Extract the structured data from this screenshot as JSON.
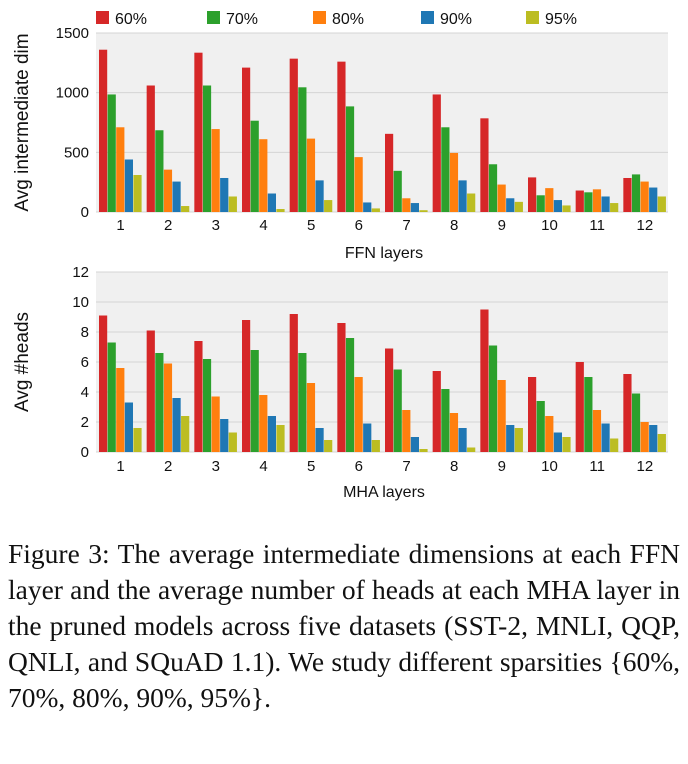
{
  "legend": [
    "60%",
    "70%",
    "80%",
    "90%",
    "95%"
  ],
  "colors": [
    "#d62728",
    "#2ca02c",
    "#ff7f0e",
    "#1f77b4",
    "#bcbd22"
  ],
  "chart_data": [
    {
      "type": "bar",
      "ylabel": "Avg intermediate dim",
      "xlabel": "FFN layers",
      "categories": [
        "1",
        "2",
        "3",
        "4",
        "5",
        "6",
        "7",
        "8",
        "9",
        "10",
        "11",
        "12"
      ],
      "ylim": [
        0,
        1500
      ],
      "yticks": [
        0,
        500,
        1000,
        1500
      ],
      "grid": true,
      "legend_position": "top",
      "series": [
        {
          "name": "60%",
          "values": [
            1360,
            1060,
            1335,
            1210,
            1285,
            1260,
            655,
            985,
            785,
            290,
            180,
            285
          ]
        },
        {
          "name": "70%",
          "values": [
            985,
            685,
            1060,
            765,
            1045,
            885,
            345,
            710,
            400,
            140,
            165,
            315
          ]
        },
        {
          "name": "80%",
          "values": [
            710,
            355,
            695,
            610,
            615,
            460,
            115,
            495,
            230,
            200,
            190,
            255
          ]
        },
        {
          "name": "90%",
          "values": [
            440,
            255,
            285,
            155,
            265,
            80,
            75,
            265,
            115,
            100,
            130,
            205
          ]
        },
        {
          "name": "95%",
          "values": [
            310,
            50,
            130,
            25,
            100,
            30,
            15,
            155,
            85,
            55,
            75,
            130
          ]
        }
      ]
    },
    {
      "type": "bar",
      "ylabel": "Avg #heads",
      "xlabel": "MHA layers",
      "categories": [
        "1",
        "2",
        "3",
        "4",
        "5",
        "6",
        "7",
        "8",
        "9",
        "10",
        "11",
        "12"
      ],
      "ylim": [
        0,
        12
      ],
      "yticks": [
        0,
        2,
        4,
        6,
        8,
        10,
        12
      ],
      "grid": true,
      "series": [
        {
          "name": "60%",
          "values": [
            9.1,
            8.1,
            7.4,
            8.8,
            9.2,
            8.6,
            6.9,
            5.4,
            9.5,
            5.0,
            6.0,
            5.2
          ]
        },
        {
          "name": "70%",
          "values": [
            7.3,
            6.6,
            6.2,
            6.8,
            6.6,
            7.6,
            5.5,
            4.2,
            7.1,
            3.4,
            5.0,
            3.9
          ]
        },
        {
          "name": "80%",
          "values": [
            5.6,
            5.9,
            3.7,
            3.8,
            4.6,
            5.0,
            2.8,
            2.6,
            4.8,
            2.4,
            2.8,
            2.0
          ]
        },
        {
          "name": "90%",
          "values": [
            3.3,
            3.6,
            2.2,
            2.4,
            1.6,
            1.9,
            1.0,
            1.6,
            1.8,
            1.3,
            1.9,
            1.8
          ]
        },
        {
          "name": "95%",
          "values": [
            1.6,
            2.4,
            1.3,
            1.8,
            0.8,
            0.8,
            0.2,
            0.3,
            1.6,
            1.0,
            0.9,
            1.2
          ]
        }
      ]
    }
  ],
  "caption": "Figure 3: The average intermediate dimensions at each FFN layer and the average number of heads at each MHA layer in the pruned models across five datasets (SST-2, MNLI, QQP, QNLI, and SQuAD 1.1). We study different sparsities {60%, 70%, 80%, 90%, 95%}."
}
